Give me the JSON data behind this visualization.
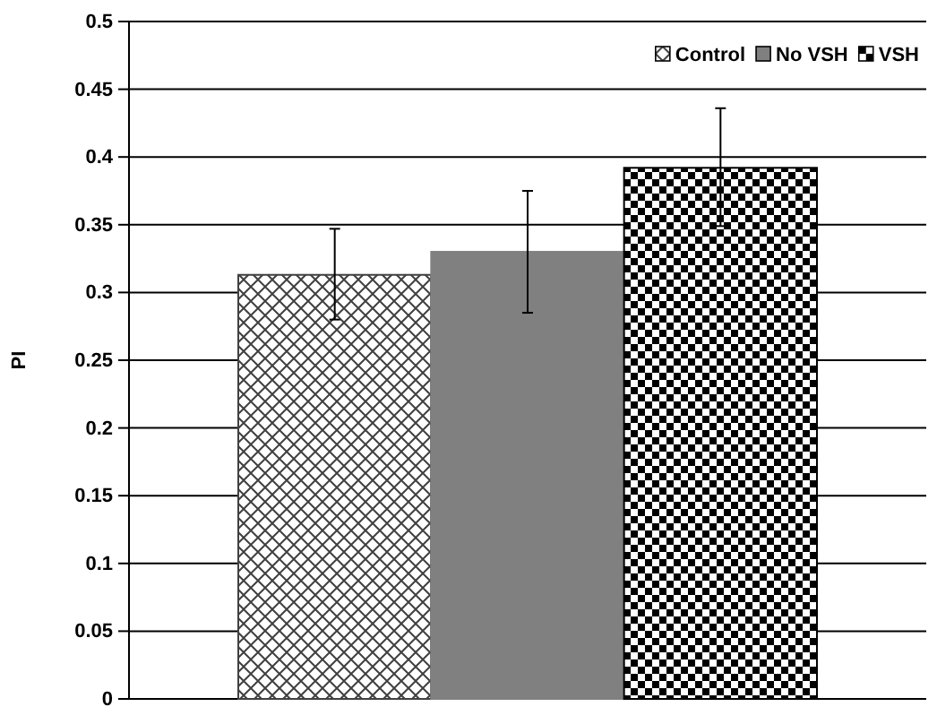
{
  "chart_data": {
    "type": "bar",
    "ylabel": "PI",
    "categories": [
      null
    ],
    "series": [
      {
        "name": "Control",
        "color": "#404040",
        "values": [
          0.313
        ],
        "errors": [
          [
            0.28,
            0.347
          ]
        ]
      },
      {
        "name": "No VSH",
        "color": "#808080",
        "values": [
          0.33
        ],
        "errors": [
          [
            0.285,
            0.375
          ]
        ]
      },
      {
        "name": "VSH",
        "color": "#000000",
        "values": [
          0.392
        ],
        "errors": [
          [
            0.349,
            0.436
          ]
        ]
      }
    ],
    "ylim": [
      0,
      0.5
    ],
    "yticks": [
      0,
      0.05,
      0.1,
      0.15,
      0.2,
      0.25,
      0.3,
      0.35,
      0.4,
      0.45,
      0.5
    ],
    "grid": "y",
    "legend": "top right"
  }
}
